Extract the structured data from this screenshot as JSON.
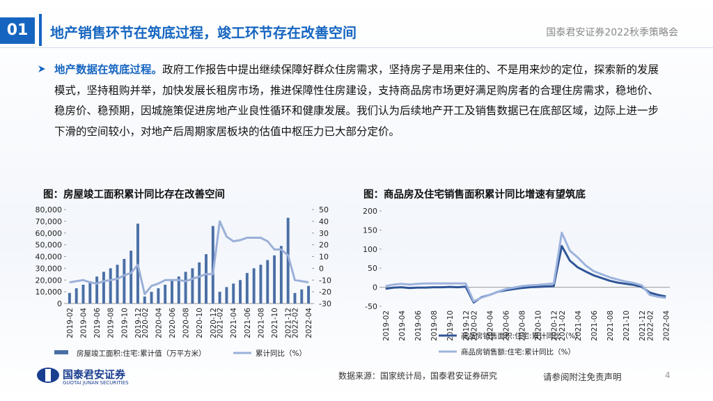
{
  "header": {
    "number": "01",
    "title": "地产销售环节在筑底过程，竣工环节存在改善空间",
    "event": "国泰君安证券2022秋季策略会"
  },
  "body": {
    "lead": "地产数据在筑底过程。",
    "text": "政府工作报告中提出继续保障好群众住房需求，坚持房子是用来住的、不是用来炒的定位，探索新的发展模式，坚持租购并举，加快发展长租房市场，推进保障性住房建设，支持商品房市场更好满足购房者的合理住房需求，稳地价、稳房价、稳预期，因城施策促进房地产业良性循环和健康发展。我们认为后续地产开工及销售数据已在底部区域，边际上进一步下滑的空间较小，对地产后周期家居板块的估值中枢压力已大部分定价。"
  },
  "chart_data": [
    {
      "type": "bar",
      "title": "图：房屋竣工面积累计同比存在改善空间",
      "categories": [
        "2019-02",
        null,
        "2019-04",
        null,
        "2019-06",
        null,
        "2019-08",
        null,
        "2019-10",
        null,
        "2019-12",
        "2020-02",
        null,
        "2020-04",
        null,
        "2020-06",
        null,
        "2020-08",
        null,
        "2020-10",
        null,
        "2020-12",
        "2021-02",
        null,
        "2021-04",
        null,
        "2021-06",
        null,
        "2021-08",
        null,
        "2021-10",
        null,
        "2021-12",
        "2022-02",
        null,
        "2022-04"
      ],
      "series": [
        {
          "name": "房屋竣工面积:住宅:累计值（万平方米）",
          "type": "bar",
          "color": "#4a6fa5",
          "values": [
            9000,
            13000,
            16000,
            19000,
            23000,
            27000,
            30000,
            33000,
            38000,
            45000,
            68000,
            6000,
            10000,
            13000,
            16000,
            20000,
            23000,
            27000,
            30000,
            35000,
            42000,
            66000,
            10000,
            14000,
            17000,
            20000,
            26000,
            30000,
            33000,
            37000,
            41000,
            49000,
            73000,
            9000,
            12000,
            15000
          ]
        },
        {
          "name": "累计同比（%）",
          "type": "line",
          "axis": "y2",
          "color": "#9bb0d8",
          "values": [
            -12,
            -11,
            -10,
            -12,
            -13,
            -11,
            -10,
            -9,
            -6,
            -4,
            3,
            -22,
            -15,
            -13,
            -10,
            -10,
            -10,
            -11,
            -9,
            -7,
            -5,
            -5,
            40,
            27,
            23,
            24,
            26,
            26,
            26,
            23,
            16,
            16,
            11,
            -10,
            -11,
            -12
          ]
        }
      ],
      "ylim": [
        0,
        80000
      ],
      "yticks": [
        0,
        {
          "value": 10000,
          "label": "10,000"
        },
        {
          "value": 20000,
          "label": "20,000"
        },
        {
          "value": 30000,
          "label": "30,000"
        },
        {
          "value": 40000,
          "label": "40,000"
        },
        {
          "value": 50000,
          "label": "50,000"
        },
        {
          "value": 60000,
          "label": "60,000"
        },
        {
          "value": 70000,
          "label": "70,000"
        },
        {
          "value": 80000,
          "label": "80,000"
        }
      ],
      "y2lim": [
        -30,
        50
      ],
      "y2ticks": [
        -30,
        -20,
        -10,
        0,
        10,
        20,
        30,
        40,
        50
      ],
      "grid": false
    },
    {
      "type": "line",
      "title": "图：商品房及住宅销售面积累计同比增速有望筑底",
      "categories": [
        "2019-02",
        null,
        "2019-04",
        null,
        "2019-06",
        null,
        "2019-08",
        null,
        "2019-10",
        null,
        "2019-12",
        "2020-02",
        null,
        "2020-04",
        null,
        "2020-06",
        null,
        "2020-08",
        null,
        "2020-10",
        null,
        "2020-12",
        "2021-02",
        null,
        "2021-04",
        null,
        "2021-06",
        null,
        "2021-08",
        null,
        "2021-10",
        null,
        "2021-12",
        "2022-02",
        null,
        "2022-04"
      ],
      "series": [
        {
          "name": "商品房销售面积:住宅:累计同比（%）",
          "color": "#2f5597",
          "values": [
            -4,
            -1,
            0,
            -2,
            -1,
            -1,
            0,
            0,
            1,
            0,
            1.5,
            -40,
            -26,
            -20,
            -12,
            -8,
            -5,
            -2,
            0,
            1,
            2,
            3,
            108,
            70,
            52,
            41,
            31,
            24,
            17,
            12,
            9,
            6,
            1,
            -14,
            -20,
            -24
          ]
        },
        {
          "name": "商品房销售额:住宅:累计同比（%）",
          "color": "#9db3dd",
          "values": [
            3,
            7,
            9,
            7,
            9,
            10,
            10,
            10,
            10,
            10,
            10,
            -37,
            -27,
            -20,
            -12,
            -5,
            -1,
            3,
            5,
            6,
            8,
            10,
            143,
            96,
            78,
            57,
            42,
            34,
            26,
            20,
            15,
            11,
            5,
            -20,
            -25,
            -28
          ]
        }
      ],
      "ylim": [
        -50,
        200
      ],
      "yticks": [
        -50,
        0,
        50,
        100,
        150,
        200
      ],
      "grid": false
    }
  ],
  "footer": {
    "brand": "国泰君安证券",
    "brand_en": "GUOTAI JUNAN SECURITIES",
    "source": "数据来源：国家统计局，国泰君安证券研究",
    "disclaimer": "请参阅附注免责声明",
    "page": "4"
  }
}
